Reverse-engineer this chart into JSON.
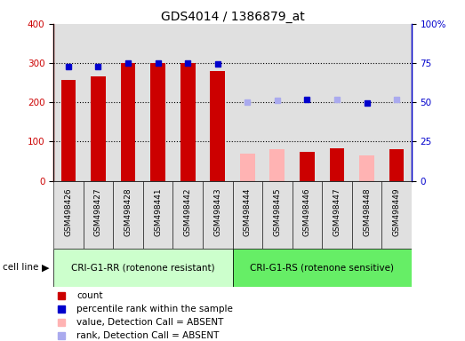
{
  "title": "GDS4014 / 1386879_at",
  "samples": [
    "GSM498426",
    "GSM498427",
    "GSM498428",
    "GSM498441",
    "GSM498442",
    "GSM498443",
    "GSM498444",
    "GSM498445",
    "GSM498446",
    "GSM498447",
    "GSM498448",
    "GSM498449"
  ],
  "count_values": [
    258,
    267,
    300,
    300,
    300,
    280,
    68,
    80,
    73,
    82,
    65,
    80
  ],
  "count_absent": [
    false,
    false,
    false,
    false,
    false,
    false,
    true,
    true,
    false,
    false,
    true,
    false
  ],
  "rank_values": [
    73,
    73,
    75,
    75,
    75,
    74.5,
    50,
    51,
    52,
    52,
    49.5,
    51.8
  ],
  "rank_absent": [
    false,
    false,
    false,
    false,
    false,
    false,
    true,
    true,
    false,
    true,
    false,
    true
  ],
  "group1_label": "CRI-G1-RR (rotenone resistant)",
  "group2_label": "CRI-G1-RS (rotenone sensitive)",
  "group1_count": 6,
  "group2_count": 6,
  "ylim_left": [
    0,
    400
  ],
  "ylim_right": [
    0,
    100
  ],
  "yticks_left": [
    0,
    100,
    200,
    300,
    400
  ],
  "yticks_right": [
    0,
    25,
    50,
    75,
    100
  ],
  "ytick_labels_right": [
    "0",
    "25",
    "50",
    "75",
    "100%"
  ],
  "red_color": "#cc0000",
  "pink_color": "#ffb3b3",
  "blue_color": "#0000cc",
  "lavender_color": "#aaaaee",
  "group1_bg": "#e0e0e0",
  "group2_bg": "#e0e0e0",
  "cell_line_g1_color": "#ccffcc",
  "cell_line_g2_color": "#66ee66",
  "white_bg": "#ffffff"
}
